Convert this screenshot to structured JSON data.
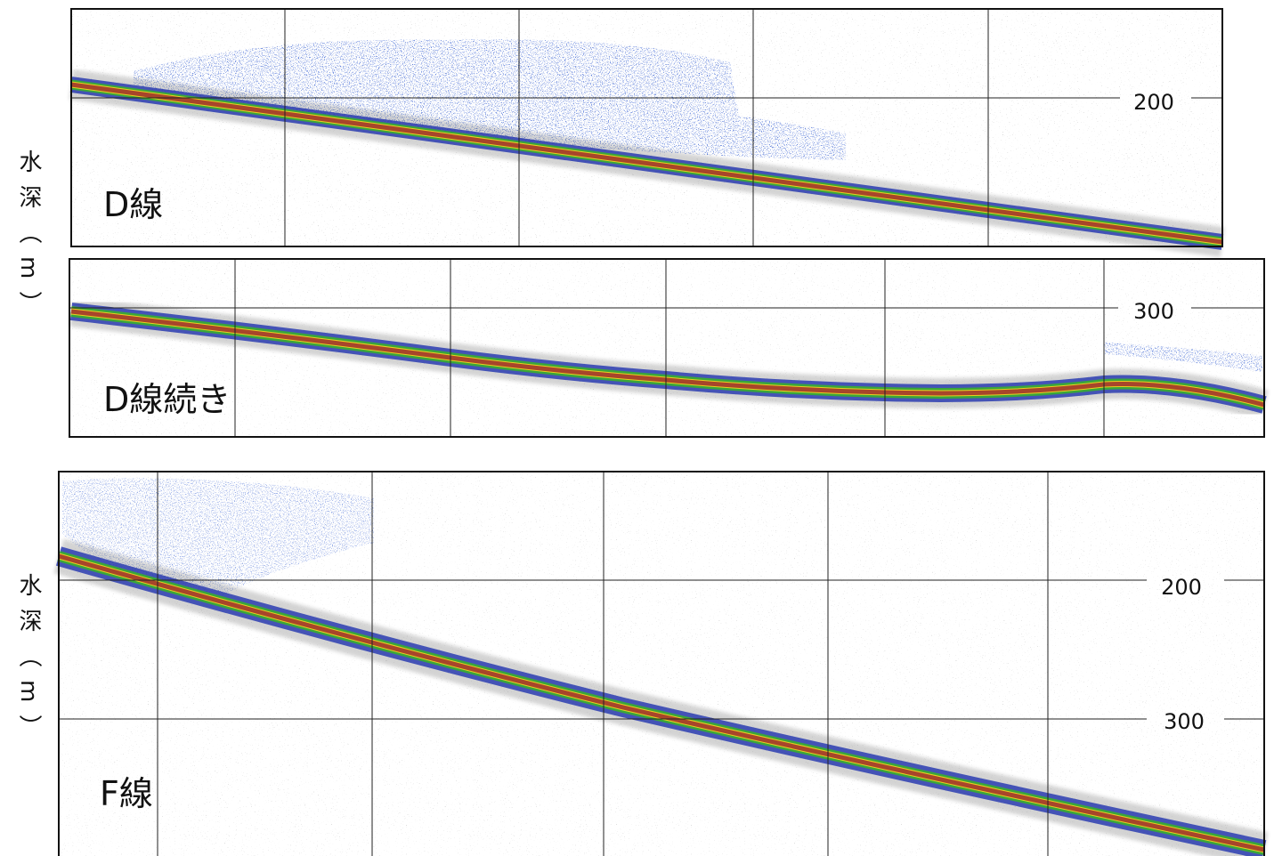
{
  "axis_label": "水深（m）",
  "panels": [
    {
      "label": "D線",
      "depth_labels": [
        "200"
      ]
    },
    {
      "label": "D線続き",
      "depth_labels": [
        "300"
      ]
    },
    {
      "label": "F線",
      "depth_labels": [
        "200",
        "300"
      ]
    }
  ]
}
